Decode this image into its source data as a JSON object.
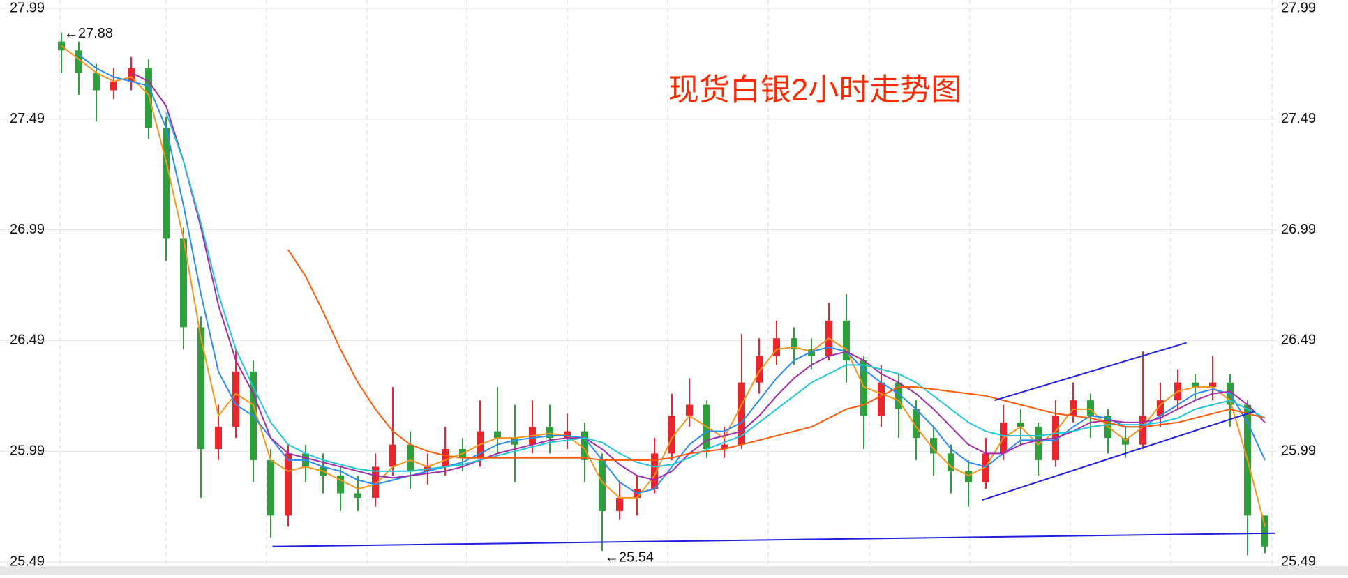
{
  "chart_data": {
    "type": "candlestick",
    "title": "现货白银2小时走势图",
    "title_color": "#ff2a00",
    "ylim": [
      25.49,
      27.99
    ],
    "yticks": [
      25.49,
      25.99,
      26.49,
      26.99,
      27.49,
      27.99
    ],
    "grid": true,
    "up_color": "#e8262b",
    "down_color": "#2f9e3c",
    "open": [
      27.84,
      27.8,
      27.7,
      27.62,
      27.66,
      27.72,
      27.45,
      26.95,
      26.55,
      26.0,
      26.1,
      26.35,
      25.95,
      25.7,
      25.98,
      25.92,
      25.88,
      25.8,
      25.78,
      25.92,
      26.02,
      25.9,
      25.92,
      26.0,
      25.96,
      26.08,
      26.05,
      26.02,
      26.1,
      26.05,
      26.08,
      25.95,
      25.72,
      25.78,
      25.82,
      25.98,
      26.15,
      26.2,
      26.0,
      26.02,
      26.3,
      26.42,
      26.5,
      26.45,
      26.42,
      26.58,
      26.4,
      26.15,
      26.3,
      26.18,
      26.05,
      25.98,
      25.9,
      25.85,
      25.98,
      26.12,
      26.1,
      25.95,
      26.15,
      26.22,
      26.15,
      26.05,
      26.02,
      26.15,
      26.22,
      26.3,
      26.28,
      26.3,
      26.2,
      25.7
    ],
    "high": [
      27.88,
      27.84,
      27.74,
      27.72,
      27.77,
      27.76,
      27.5,
      27.0,
      26.6,
      26.2,
      26.45,
      26.4,
      26.0,
      26.02,
      26.02,
      25.98,
      25.92,
      25.88,
      25.98,
      26.28,
      26.08,
      25.98,
      26.1,
      26.05,
      26.22,
      26.28,
      26.2,
      26.22,
      26.2,
      26.16,
      26.12,
      25.98,
      25.85,
      25.88,
      26.05,
      26.25,
      26.32,
      26.22,
      26.1,
      26.52,
      26.5,
      26.58,
      26.55,
      26.5,
      26.66,
      26.7,
      26.42,
      26.38,
      26.34,
      26.22,
      26.1,
      26.02,
      25.95,
      26.05,
      26.2,
      26.18,
      26.12,
      26.22,
      26.3,
      26.25,
      26.18,
      26.1,
      26.44,
      26.3,
      26.36,
      26.34,
      26.42,
      26.34,
      26.22,
      25.68
    ],
    "low": [
      27.7,
      27.6,
      27.48,
      27.58,
      27.62,
      27.4,
      26.85,
      26.45,
      25.78,
      25.95,
      26.05,
      25.85,
      25.6,
      25.65,
      25.85,
      25.8,
      25.72,
      25.72,
      25.74,
      25.88,
      25.82,
      25.84,
      25.88,
      25.9,
      25.92,
      25.98,
      25.85,
      25.98,
      25.98,
      26.0,
      25.85,
      25.54,
      25.68,
      25.7,
      25.8,
      25.95,
      26.1,
      25.96,
      25.96,
      26.0,
      26.25,
      26.38,
      26.38,
      26.36,
      26.4,
      26.3,
      26.0,
      26.1,
      26.05,
      25.95,
      25.88,
      25.8,
      25.74,
      25.82,
      25.95,
      26.02,
      25.88,
      25.92,
      26.12,
      26.05,
      25.98,
      25.96,
      26.0,
      26.1,
      26.18,
      26.22,
      26.22,
      26.1,
      25.52,
      25.53
    ],
    "close": [
      27.8,
      27.7,
      27.62,
      27.66,
      27.72,
      27.45,
      26.95,
      26.55,
      26.0,
      26.1,
      26.35,
      25.95,
      25.7,
      25.98,
      25.92,
      25.88,
      25.8,
      25.78,
      25.92,
      26.02,
      25.9,
      25.92,
      26.0,
      25.96,
      26.08,
      26.05,
      26.02,
      26.1,
      26.05,
      26.08,
      25.95,
      25.72,
      25.78,
      25.82,
      25.98,
      26.15,
      26.2,
      26.0,
      26.02,
      26.3,
      26.42,
      26.5,
      26.45,
      26.42,
      26.58,
      26.4,
      26.15,
      26.3,
      26.18,
      26.05,
      25.98,
      25.9,
      25.85,
      25.98,
      26.12,
      26.1,
      25.95,
      26.15,
      26.22,
      26.15,
      26.05,
      26.02,
      26.15,
      26.22,
      26.3,
      26.28,
      26.3,
      26.2,
      25.7,
      25.56
    ],
    "lines": [
      {
        "color": "#f7941d",
        "values": [
          27.82,
          27.76,
          27.7,
          27.66,
          27.68,
          27.6,
          27.3,
          26.95,
          26.5,
          26.15,
          26.25,
          26.2,
          25.95,
          25.9,
          25.92,
          25.9,
          25.86,
          25.82,
          25.84,
          25.92,
          25.95,
          25.92,
          25.95,
          25.98,
          26.02,
          26.05,
          26.05,
          26.06,
          26.07,
          26.06,
          26.0,
          25.85,
          25.78,
          25.78,
          25.88,
          26.05,
          26.15,
          26.1,
          26.05,
          26.2,
          26.35,
          26.45,
          26.46,
          26.44,
          26.5,
          26.45,
          26.28,
          26.25,
          26.22,
          26.1,
          26.0,
          25.92,
          25.88,
          25.92,
          26.05,
          26.1,
          26.02,
          26.08,
          26.18,
          26.18,
          26.1,
          26.04,
          26.1,
          26.2,
          26.26,
          26.28,
          26.28,
          26.22,
          25.95,
          25.65
        ]
      },
      {
        "color": "#2a8cf0",
        "values": [
          null,
          27.78,
          27.72,
          27.68,
          27.66,
          27.64,
          27.45,
          27.1,
          26.7,
          26.35,
          26.2,
          26.15,
          26.05,
          25.95,
          25.95,
          25.92,
          25.9,
          25.86,
          25.84,
          25.86,
          25.88,
          25.9,
          25.92,
          25.94,
          25.98,
          26.02,
          26.04,
          26.05,
          26.06,
          26.06,
          26.05,
          25.95,
          25.85,
          25.8,
          25.82,
          25.92,
          26.02,
          26.08,
          26.08,
          26.12,
          26.22,
          26.32,
          26.4,
          26.44,
          26.46,
          26.44,
          26.36,
          26.3,
          26.25,
          26.18,
          26.1,
          26.0,
          25.94,
          25.92,
          25.98,
          26.04,
          26.04,
          26.04,
          26.1,
          26.15,
          26.14,
          26.1,
          26.1,
          26.15,
          26.2,
          26.25,
          26.27,
          26.25,
          26.12,
          25.95
        ]
      },
      {
        "color": "#a22ca8",
        "values": [
          null,
          null,
          null,
          null,
          27.7,
          27.66,
          27.55,
          27.3,
          27.0,
          26.65,
          26.4,
          26.25,
          26.05,
          25.98,
          25.96,
          25.94,
          25.92,
          25.9,
          25.88,
          25.87,
          25.88,
          25.89,
          25.9,
          25.92,
          25.95,
          25.98,
          26.0,
          26.02,
          26.04,
          26.05,
          26.05,
          26.0,
          25.93,
          25.88,
          25.86,
          25.9,
          25.98,
          26.04,
          26.06,
          26.08,
          26.15,
          26.24,
          26.32,
          26.38,
          26.42,
          26.44,
          26.4,
          26.34,
          26.3,
          26.25,
          26.18,
          26.1,
          26.02,
          25.98,
          25.98,
          26.02,
          26.04,
          26.05,
          26.08,
          26.12,
          26.13,
          26.12,
          26.12,
          26.14,
          26.18,
          26.22,
          26.25,
          26.26,
          26.2,
          26.12
        ]
      },
      {
        "color": "#22c6d8",
        "values": [
          null,
          null,
          null,
          null,
          null,
          null,
          27.52,
          27.3,
          27.02,
          26.7,
          26.45,
          26.28,
          26.12,
          26.02,
          25.98,
          25.95,
          25.93,
          25.91,
          25.9,
          25.9,
          25.9,
          25.91,
          25.92,
          25.93,
          25.95,
          25.97,
          25.99,
          26.01,
          26.03,
          26.04,
          26.05,
          26.03,
          25.98,
          25.94,
          25.92,
          25.93,
          25.96,
          26.0,
          26.03,
          26.06,
          26.12,
          26.18,
          26.24,
          26.3,
          26.34,
          26.38,
          26.38,
          26.36,
          26.34,
          26.3,
          26.24,
          26.18,
          26.12,
          26.08,
          26.06,
          26.06,
          26.06,
          26.07,
          26.08,
          26.1,
          26.11,
          26.11,
          26.11,
          26.12,
          26.14,
          26.18,
          26.2,
          26.22,
          26.18,
          26.14
        ]
      },
      {
        "color": "#ff5a0a",
        "values": [
          null,
          null,
          null,
          null,
          null,
          null,
          null,
          null,
          null,
          null,
          null,
          null,
          null,
          26.9,
          26.78,
          26.62,
          26.45,
          26.3,
          26.18,
          26.08,
          26.02,
          25.99,
          25.97,
          25.96,
          25.96,
          25.96,
          25.96,
          25.96,
          25.96,
          25.96,
          25.96,
          25.95,
          25.95,
          25.95,
          25.95,
          25.96,
          25.98,
          25.99,
          26.0,
          26.02,
          26.04,
          26.06,
          26.08,
          26.1,
          26.14,
          26.18,
          26.2,
          26.24,
          26.28,
          26.28,
          26.27,
          26.26,
          26.25,
          26.24,
          26.22,
          26.2,
          26.18,
          26.16,
          26.15,
          26.14,
          26.12,
          26.1,
          26.1,
          26.11,
          26.12,
          26.14,
          26.16,
          26.18,
          26.16,
          26.14
        ]
      }
    ],
    "trendlines": [
      {
        "color": "#1f1fe0",
        "x": [
          12.1,
          69.6
        ],
        "y": [
          25.56,
          25.62
        ]
      },
      {
        "color": "#1f1fe0",
        "x": [
          52.8,
          68.4
        ],
        "y": [
          25.77,
          26.17
        ]
      },
      {
        "color": "#1f1fe0",
        "x": [
          53.5,
          64.5
        ],
        "y": [
          26.22,
          26.48
        ]
      }
    ],
    "annotations": [
      {
        "text": "←27.88",
        "index": 0,
        "value": 27.88
      },
      {
        "text": "←25.54",
        "index": 31,
        "value": 25.54
      }
    ]
  }
}
